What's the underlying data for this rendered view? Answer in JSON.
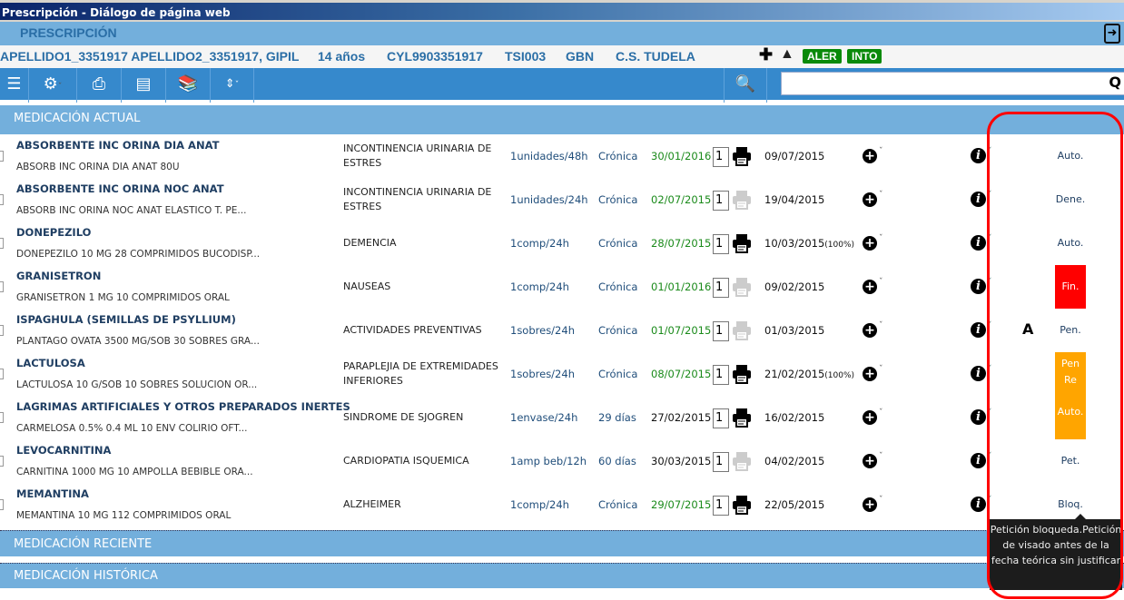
{
  "window": {
    "title": "Prescripción - Diálogo de página web"
  },
  "header": {
    "title": "PRESCRIPCIÓN"
  },
  "patient": {
    "name": "APELLIDO1_3351917 APELLIDO2_3351917, GIPIL",
    "age": "14 años",
    "cip": "CYL9903351917",
    "tsi": "TSI003",
    "code": "GBN",
    "center": "C.S. TUDELA",
    "badges": [
      "ALER",
      "INTO"
    ],
    "badge_color": "#098a09"
  },
  "sections": {
    "current": "MEDICACIÓN ACTUAL",
    "recent": "MEDICACIÓN RECIENTE",
    "historic": "MEDICACIÓN HISTÓRICA"
  },
  "rows": [
    {
      "name": "ABSORBENTE INC ORINA DIA ANAT",
      "product": "ABSORB INC ORINA DIA ANAT 80U",
      "indication": "INCONTINENCIA URINARIA DE ESTRES",
      "dose": "1unidades/48h",
      "type": "Crónica",
      "end_date": "30/01/2016",
      "end_color": "#1a8a1a",
      "qty": "1",
      "printer": "active",
      "date": "09/07/2015",
      "pct": "",
      "status": "Auto."
    },
    {
      "name": "ABSORBENTE INC ORINA NOC ANAT",
      "product": "ABSORB INC ORINA NOC ANAT ELASTICO T. PE...",
      "indication": "INCONTINENCIA URINARIA DE ESTRES",
      "dose": "1unidades/24h",
      "type": "Crónica",
      "end_date": "02/07/2015",
      "end_color": "#1a8a1a",
      "qty": "1",
      "printer": "disabled",
      "date": "19/04/2015",
      "pct": "",
      "status": "Dene."
    },
    {
      "name": "DONEPEZILO",
      "product": "DONEPEZILO 10 MG 28 COMPRIMIDOS BUCODISP...",
      "indication": "DEMENCIA",
      "dose": "1comp/24h",
      "type": "Crónica",
      "end_date": "28/07/2015",
      "end_color": "#1a8a1a",
      "qty": "1",
      "printer": "active",
      "date": "10/03/2015",
      "pct": "(100%)",
      "status": "Auto."
    },
    {
      "name": "GRANISETRON",
      "product": "GRANISETRON 1 MG 10 COMPRIMIDOS ORAL",
      "indication": "NAUSEAS",
      "dose": "1comp/24h",
      "type": "Crónica",
      "end_date": "01/01/2016",
      "end_color": "#1a8a1a",
      "qty": "1",
      "printer": "disabled",
      "date": "09/02/2015",
      "pct": "",
      "status": ""
    },
    {
      "name": "ISPAGHULA (SEMILLAS DE PSYLLIUM)",
      "product": "PLANTAGO OVATA 3500 MG/SOB 30 SOBRES GRA...",
      "indication": "ACTIVIDADES PREVENTIVAS",
      "dose": "1sobres/24h",
      "type": "Crónica",
      "end_date": "01/07/2015",
      "end_color": "#1a8a1a",
      "qty": "1",
      "printer": "disabled",
      "date": "01/03/2015",
      "pct": "",
      "status": "Pen.",
      "letter": "A"
    },
    {
      "name": "LACTULOSA",
      "product": "LACTULOSA 10 G/SOB 10 SOBRES SOLUCION OR...",
      "indication": "PARAPLEJIA DE EXTREMIDADES INFERIORES",
      "dose": "1sobres/24h",
      "type": "Crónica",
      "end_date": "08/07/2015",
      "end_color": "#1a8a1a",
      "qty": "1",
      "printer": "active",
      "date": "21/02/2015",
      "pct": "(100%)",
      "status": ""
    },
    {
      "name": "LAGRIMAS ARTIFICIALES Y OTROS PREPARADOS INERTES",
      "product": "CARMELOSA 0.5% 0.4 ML 10 ENV COLIRIO OFT...",
      "indication": "SINDROME DE SJOGREN",
      "dose": "1envase/24h",
      "type": "29 días",
      "end_date": "27/02/2015",
      "end_color": "#111111",
      "qty": "1",
      "printer": "active",
      "date": "16/02/2015",
      "pct": "",
      "status": ""
    },
    {
      "name": "LEVOCARNITINA",
      "product": "CARNITINA 1000 MG 10 AMPOLLA BEBIBLE ORA...",
      "indication": "CARDIOPATIA ISQUEMICA",
      "dose": "1amp beb/12h",
      "type": "60 días",
      "end_date": "30/03/2015",
      "end_color": "#111111",
      "qty": "1",
      "printer": "disabled",
      "date": "04/02/2015",
      "pct": "",
      "status": "Pet."
    },
    {
      "name": "MEMANTINA",
      "product": "MEMANTINA 10 MG 112 COMPRIMIDOS ORAL",
      "indication": "ALZHEIMER",
      "dose": "1comp/24h",
      "type": "Crónica",
      "end_date": "29/07/2015",
      "end_color": "#1a8a1a",
      "qty": "1",
      "printer": "active",
      "date": "22/05/2015",
      "pct": "",
      "status": "Bloq."
    }
  ],
  "status_blocks": {
    "fin": {
      "label": "Fin.",
      "color": "#ff0000"
    },
    "pending": {
      "lines": [
        "Pen",
        "Re",
        "Auto."
      ],
      "color": "#ffa500"
    }
  },
  "tooltip": "Petición bloqueda.Petición de visado antes de la fecha teórica sin justificar",
  "search": {
    "value": "",
    "placeholder": ""
  }
}
